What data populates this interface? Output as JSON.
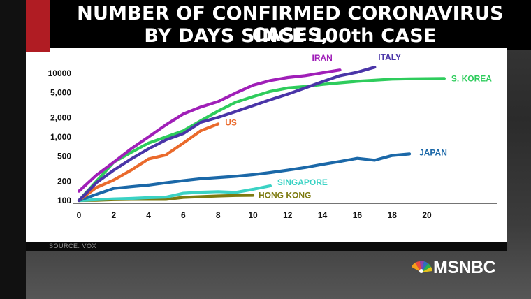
{
  "title": {
    "line1": "NUMBER OF CONFIRMED CORONAVIRUS CASES,",
    "line2": "BY DAYS SINCE 100th CASE"
  },
  "source": "SOURCE: VOX",
  "network": "MSNBC",
  "colors": {
    "Iran": "#a01fb8",
    "Italy": "#4a35a8",
    "S. Korea": "#2ecc5c",
    "US": "#ea6a2c",
    "Japan": "#1b68a8",
    "Singapore": "#3ad2c4",
    "Hong Kong": "#7d7a10"
  },
  "chart_data": {
    "type": "line",
    "title": "NUMBER OF CONFIRMED CORONAVIRUS CASES, BY DAYS SINCE 100th CASE",
    "xlabel": "",
    "ylabel": "",
    "xlim": [
      0,
      24
    ],
    "ylim": [
      100,
      12000
    ],
    "yscale": "log",
    "grid": false,
    "legend": "direct labels at line ends",
    "x_ticks": [
      0,
      2,
      4,
      6,
      8,
      10,
      12,
      14,
      16,
      18,
      20
    ],
    "y_ticks": [
      {
        "value": 100,
        "label": "100"
      },
      {
        "value": 200,
        "label": "200"
      },
      {
        "value": 500,
        "label": "500"
      },
      {
        "value": 1000,
        "label": "1,000"
      },
      {
        "value": 2000,
        "label": "2,000"
      },
      {
        "value": 5000,
        "label": "5,000"
      },
      {
        "value": 10000,
        "label": "10000"
      }
    ],
    "series": [
      {
        "name": "IRAN",
        "color_key": "Iran",
        "x": [
          0,
          1,
          2,
          3,
          4,
          5,
          6,
          7,
          8,
          9,
          10,
          11,
          12,
          13,
          14,
          15
        ],
        "y": [
          140,
          250,
          400,
          650,
          1000,
          1550,
          2300,
          2950,
          3600,
          4900,
          6500,
          7700,
          8600,
          9200,
          10200,
          11300
        ]
      },
      {
        "name": "ITALY",
        "color_key": "Italy",
        "x": [
          0,
          1,
          2,
          3,
          4,
          5,
          6,
          7,
          8,
          9,
          10,
          11,
          12,
          13,
          14,
          15,
          16,
          17
        ],
        "y": [
          100,
          190,
          300,
          450,
          650,
          900,
          1130,
          1700,
          2030,
          2500,
          3100,
          3850,
          4700,
          5900,
          7400,
          9170,
          10400,
          12500
        ]
      },
      {
        "name": "S. KOREA",
        "color_key": "S. Korea",
        "x": [
          0,
          1,
          2,
          3,
          4,
          5,
          6,
          7,
          8,
          9,
          10,
          11,
          12,
          13,
          14,
          15,
          16,
          17,
          18,
          19,
          20,
          21
        ],
        "y": [
          100,
          200,
          400,
          570,
          800,
          1000,
          1250,
          1800,
          2550,
          3500,
          4300,
          5200,
          5900,
          6200,
          6700,
          7100,
          7500,
          7800,
          8100,
          8200,
          8250,
          8300
        ]
      },
      {
        "name": "US",
        "color_key": "US",
        "x": [
          0,
          1,
          2,
          3,
          4,
          5,
          6,
          7,
          8
        ],
        "y": [
          100,
          160,
          210,
          300,
          450,
          520,
          800,
          1250,
          1600
        ]
      },
      {
        "name": "JAPAN",
        "color_key": "Japan",
        "x": [
          0,
          1,
          2,
          3,
          4,
          5,
          6,
          7,
          8,
          9,
          10,
          11,
          12,
          13,
          14,
          15,
          16,
          17,
          18,
          19
        ],
        "y": [
          100,
          125,
          155,
          165,
          175,
          190,
          205,
          220,
          230,
          240,
          255,
          275,
          300,
          330,
          370,
          410,
          460,
          430,
          510,
          540
        ]
      },
      {
        "name": "SINGAPORE",
        "color_key": "Singapore",
        "x": [
          0,
          1,
          2,
          3,
          4,
          5,
          6,
          7,
          8,
          9,
          10,
          11
        ],
        "y": [
          100,
          103,
          106,
          108,
          111,
          113,
          130,
          135,
          138,
          134,
          150,
          170
        ]
      },
      {
        "name": "HONG KONG",
        "color_key": "Hong Kong",
        "x": [
          0,
          1,
          2,
          3,
          4,
          5,
          6,
          7,
          8,
          9,
          10
        ],
        "y": [
          100,
          101,
          103,
          104,
          104,
          104,
          112,
          115,
          118,
          120,
          121
        ]
      }
    ]
  }
}
